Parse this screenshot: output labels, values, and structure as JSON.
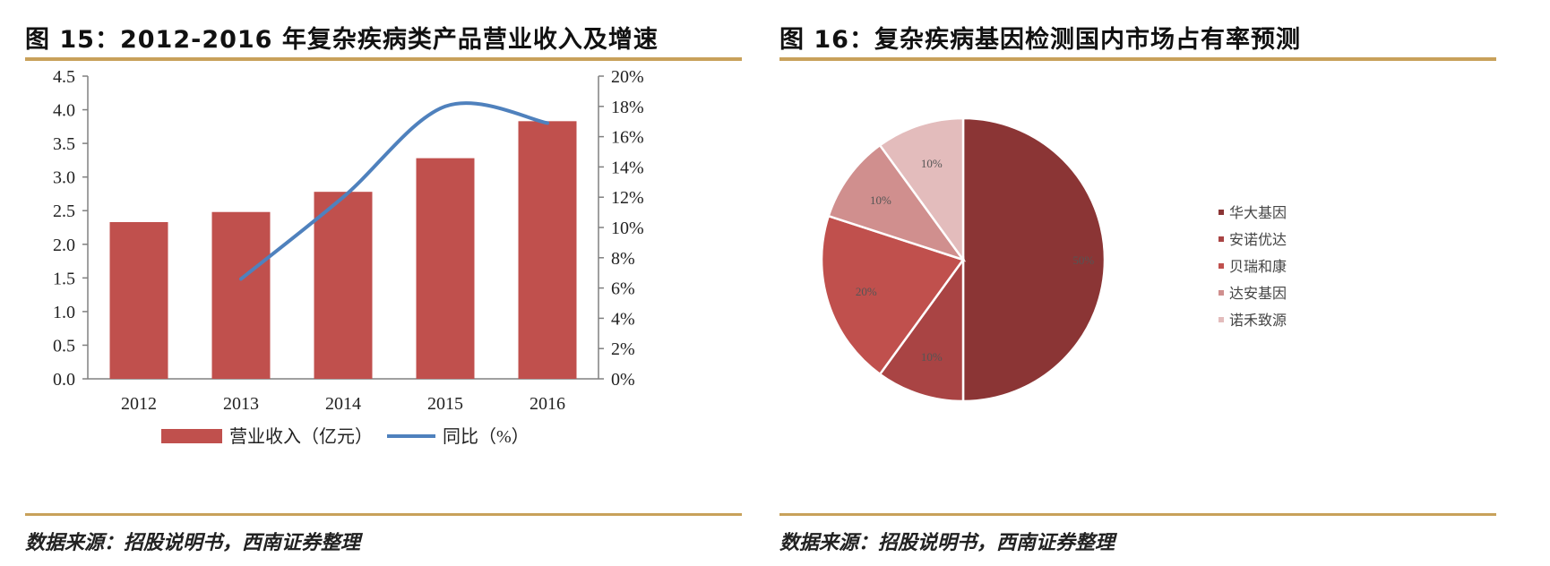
{
  "left": {
    "title": "图 15：2012-2016 年复杂疾病类产品营业收入及增速",
    "source": "数据来源：招股说明书，西南证券整理"
  },
  "right": {
    "title": "图 16：复杂疾病基因检测国内市场占有率预测",
    "source": "数据来源：招股说明书，西南证券整理"
  },
  "chart_data": [
    {
      "type": "bar",
      "categories": [
        "2012",
        "2013",
        "2014",
        "2015",
        "2016"
      ],
      "series": [
        {
          "name": "营业收入（亿元）",
          "type": "bar",
          "axis": "left",
          "color": "#c0504d",
          "values": [
            2.33,
            2.48,
            2.78,
            3.28,
            3.83
          ]
        },
        {
          "name": "同比（%）",
          "type": "line",
          "axis": "right",
          "color": "#4f81bd",
          "smooth": true,
          "values": [
            null,
            6.6,
            12.0,
            18.0,
            16.9
          ]
        }
      ],
      "y_left": {
        "min": 0,
        "max": 4.5,
        "ticks": [
          "0.0",
          "0.5",
          "1.0",
          "1.5",
          "2.0",
          "2.5",
          "3.0",
          "3.5",
          "4.0",
          "4.5"
        ]
      },
      "y_right": {
        "min": 0,
        "max": 20,
        "ticks": [
          "0%",
          "2%",
          "4%",
          "6%",
          "8%",
          "10%",
          "12%",
          "14%",
          "16%",
          "18%",
          "20%"
        ]
      },
      "grid": false,
      "legend_position": "bottom"
    },
    {
      "type": "pie",
      "categories": [
        "华大基因",
        "安诺优达",
        "贝瑞和康",
        "达安基因",
        "诺禾致源"
      ],
      "values": [
        50,
        10,
        20,
        10,
        10
      ],
      "labels": [
        "50%",
        "10%",
        "20%",
        "10%",
        "10%"
      ],
      "colors": [
        "#8b3535",
        "#a94444",
        "#c0504d",
        "#d08f8e",
        "#e3bcbc"
      ],
      "legend_position": "right"
    }
  ]
}
